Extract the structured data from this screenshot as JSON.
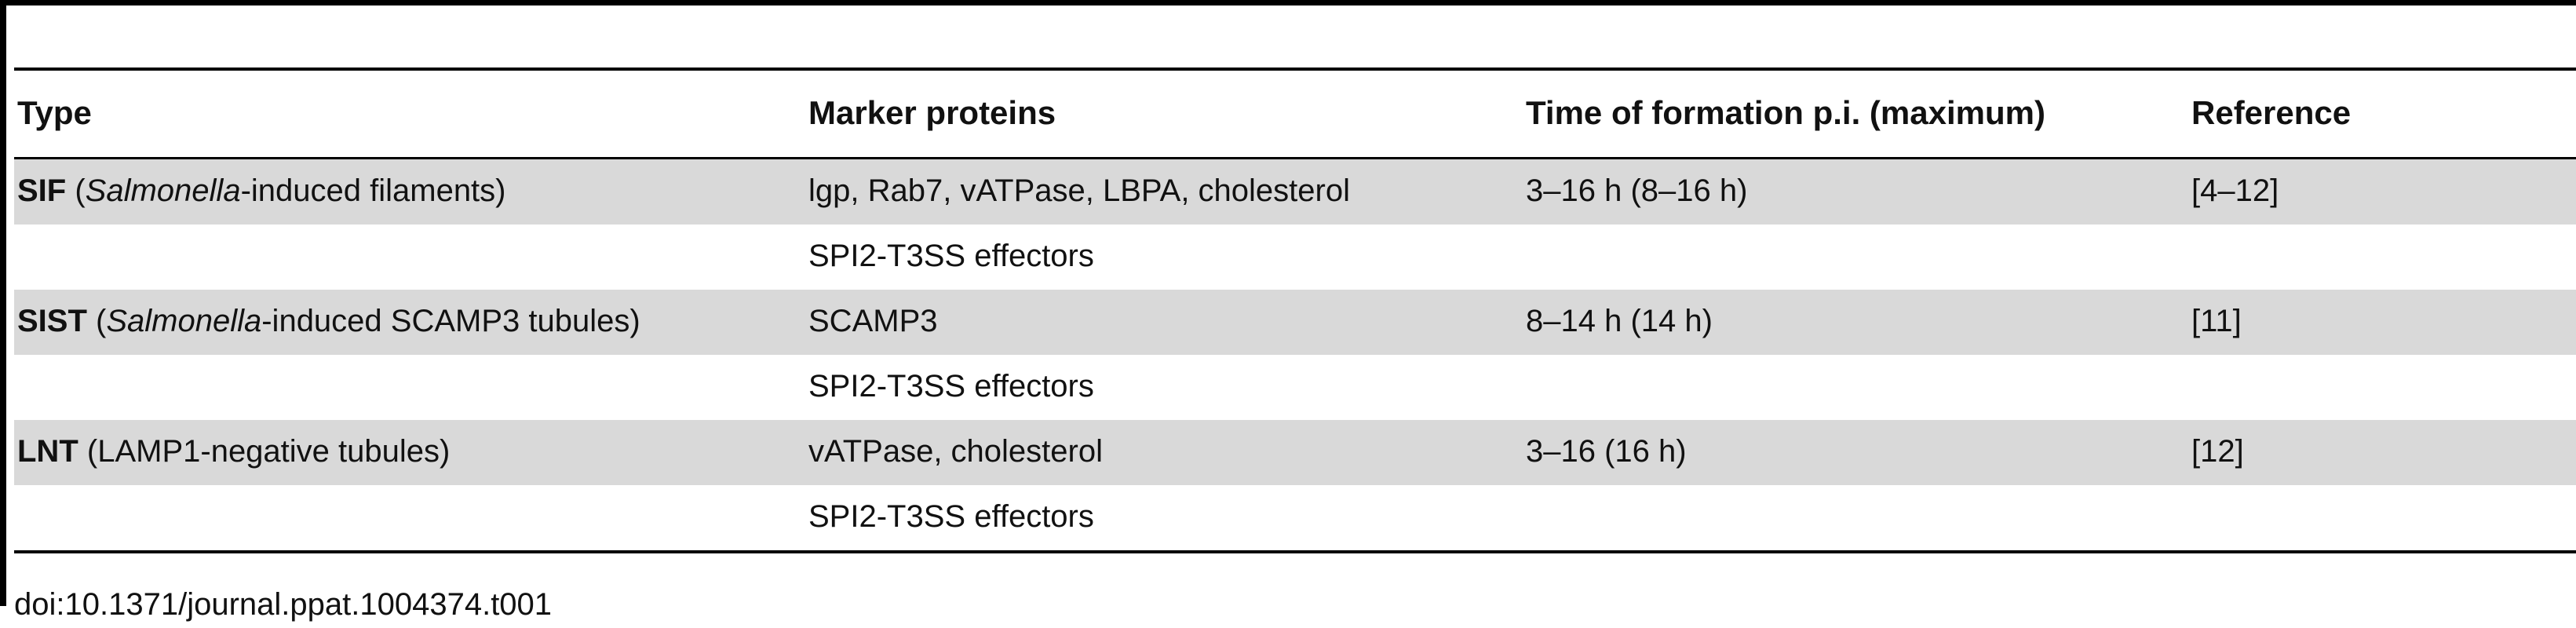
{
  "table": {
    "headers": [
      "Type",
      "Marker proteins",
      "Time of formation p.i. (maximum)",
      "Reference"
    ],
    "rows": [
      {
        "type_bold": "SIF",
        "type_pre": " (",
        "type_italic": "Salmonella",
        "type_rest": "-induced filaments)",
        "markers": "lgp, Rab7, vATPase, LBPA, cholesterol",
        "time": "3–16 h (8–16 h)",
        "reference": "[4–12]"
      },
      {
        "markers": "SPI2-T3SS effectors"
      },
      {
        "type_bold": "SIST",
        "type_pre": " (",
        "type_italic": "Salmonella",
        "type_rest": "-induced SCAMP3 tubules)",
        "markers": "SCAMP3",
        "time": "8–14 h (14 h)",
        "reference": "[11]"
      },
      {
        "markers": "SPI2-T3SS effectors"
      },
      {
        "type_bold": "LNT",
        "type_pre": " (LAMP1-negative tubules)",
        "markers": "vATPase, cholesterol",
        "time": "3–16 (16 h)",
        "reference": "[12]"
      },
      {
        "markers": "SPI2-T3SS effectors"
      }
    ]
  },
  "footnote": "doi:10.1371/journal.ppat.1004374.t001"
}
